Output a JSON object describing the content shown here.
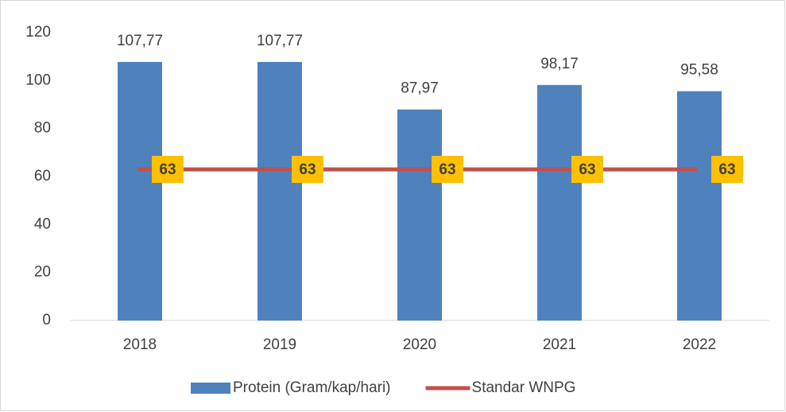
{
  "chart_data": {
    "type": "bar",
    "categories": [
      "2018",
      "2019",
      "2020",
      "2021",
      "2022"
    ],
    "series": [
      {
        "name": "Protein (Gram/kap/hari)",
        "type": "bar",
        "color": "#4f81bd",
        "values": [
          107.77,
          107.77,
          87.97,
          98.17,
          95.58
        ],
        "value_labels": [
          "107,77",
          "107,77",
          "87,97",
          "98,17",
          "95,58"
        ]
      },
      {
        "name": "Standar WNPG",
        "type": "line",
        "color": "#c0504d",
        "label_color": "#ffc000",
        "values": [
          63,
          63,
          63,
          63,
          63
        ]
      }
    ],
    "ylim": [
      0,
      120
    ],
    "yticks": [
      0,
      20,
      40,
      60,
      80,
      100,
      120
    ],
    "grid": false,
    "legend": "bottom"
  }
}
